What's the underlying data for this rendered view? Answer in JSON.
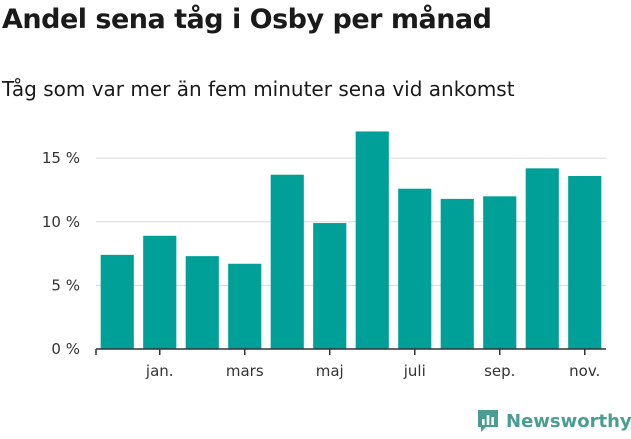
{
  "header": {
    "title": "Andel sena tåg i Osby per månad",
    "subtitle": "Tåg som var mer än fem minuter sena vid ankomst"
  },
  "logo": {
    "text": "Newsworthy",
    "icon": "newsworthy-chart-icon"
  },
  "colors": {
    "bar": "#00a099",
    "grid": "#d9d9d9",
    "axis": "#333333",
    "logo": "#4a9e91"
  },
  "chart_data": {
    "type": "bar",
    "title": "Andel sena tåg i Osby per månad",
    "subtitle": "Tåg som var mer än fem minuter sena vid ankomst",
    "xlabel": "",
    "ylabel": "",
    "ylim": [
      0,
      18
    ],
    "yticks": [
      0,
      5,
      10,
      15
    ],
    "ytick_labels": [
      "0 %",
      "5 %",
      "10 %",
      "15 %"
    ],
    "grid": true,
    "x_tick_labels": [
      {
        "index": 1,
        "label": "jan."
      },
      {
        "index": 3,
        "label": "mars"
      },
      {
        "index": 5,
        "label": "maj"
      },
      {
        "index": 7,
        "label": "juli"
      },
      {
        "index": 9,
        "label": "sep."
      },
      {
        "index": 11,
        "label": "nov."
      }
    ],
    "values": [
      7.4,
      8.9,
      7.3,
      6.7,
      13.7,
      9.9,
      17.1,
      12.6,
      11.8,
      12.0,
      14.2,
      13.6
    ]
  }
}
